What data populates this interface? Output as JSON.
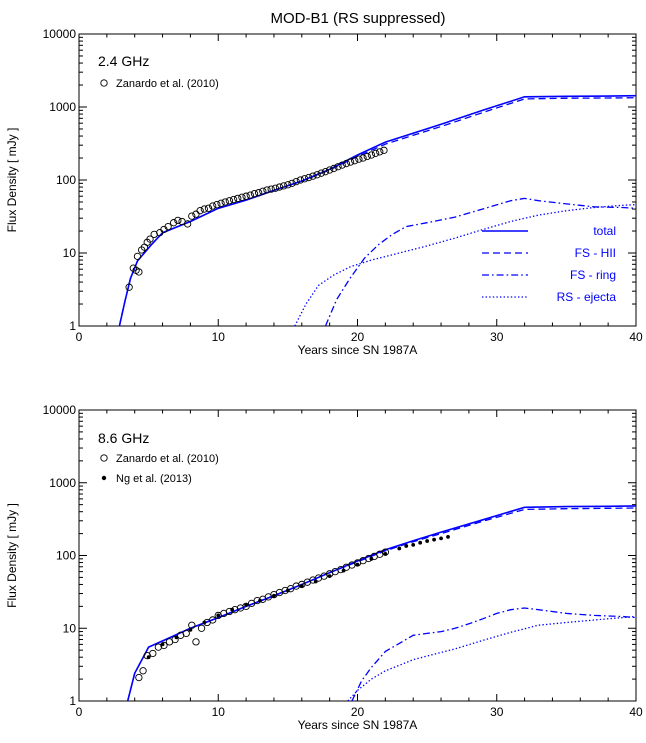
{
  "figure": {
    "title": "MOD-B1 (RS suppressed)",
    "colors": {
      "model": "#0000ff",
      "data": "#000000",
      "axes": "#000000"
    }
  },
  "chart_data": [
    {
      "type": "line",
      "panel_label": "2.4 GHz",
      "xlabel": "Years since SN 1987A",
      "ylabel": "Flux Density [ mJy ]",
      "xlim": [
        0,
        40
      ],
      "ylim": [
        1,
        10000
      ],
      "yscale": "log",
      "xticks": [
        0,
        10,
        20,
        30,
        40
      ],
      "yticks": [
        1,
        10,
        100,
        1000,
        10000
      ],
      "ytick_labels": [
        "1",
        "10",
        "100",
        "1000",
        "10000"
      ],
      "grid": false,
      "legend": {
        "placement": "center-right",
        "entries": [
          "total",
          "FS - HII",
          "FS - ring",
          "RS - ejecta"
        ]
      },
      "series": [
        {
          "name": "total",
          "style": "solid",
          "x": [
            2.9,
            3.3,
            3.7,
            4.2,
            5.2,
            6.0,
            8.0,
            10.0,
            12.0,
            14.0,
            16.0,
            18.0,
            20.0,
            22.0,
            26.0,
            29.0,
            32.0,
            35.0,
            38.0,
            40.0
          ],
          "y": [
            1.0,
            2.2,
            4.5,
            7.8,
            13.0,
            19.0,
            27.0,
            41.0,
            53.0,
            72.0,
            97.0,
            140.0,
            220.0,
            330.0,
            580.0,
            900.0,
            1380.0,
            1400.0,
            1410.0,
            1430.0
          ]
        },
        {
          "name": "FS - HII",
          "style": "dashed",
          "x": [
            2.9,
            3.3,
            3.7,
            4.2,
            5.2,
            6.0,
            8.0,
            10.0,
            12.0,
            14.0,
            16.0,
            18.0,
            20.0,
            22.0,
            26.0,
            29.0,
            32.0,
            35.0,
            38.0,
            40.0
          ],
          "y": [
            1.0,
            2.2,
            4.5,
            7.8,
            13.0,
            19.0,
            27.0,
            41.0,
            53.0,
            72.0,
            96.0,
            137.0,
            210.0,
            310.0,
            540.0,
            840.0,
            1290.0,
            1320.0,
            1330.0,
            1340.0
          ]
        },
        {
          "name": "FS - ring",
          "style": "dashdot",
          "x": [
            17.7,
            18.5,
            19.5,
            20.5,
            21.5,
            22.5,
            23.5,
            25.0,
            27.0,
            29.0,
            31.0,
            32.0,
            33.0,
            35.0,
            37.0,
            39.0,
            40.0
          ],
          "y": [
            1.0,
            2.3,
            4.6,
            8.5,
            13.0,
            18.0,
            23.0,
            26.0,
            31.0,
            40.0,
            52.0,
            56.0,
            52.0,
            47.0,
            43.0,
            42.0,
            41.0
          ]
        },
        {
          "name": "RS - ejecta",
          "style": "dotted",
          "x": [
            15.5,
            16.3,
            17.2,
            18.3,
            19.5,
            21.0,
            23.0,
            25.0,
            27.0,
            29.0,
            31.0,
            33.0,
            35.0,
            37.0,
            39.0,
            40.0
          ],
          "y": [
            1.0,
            2.0,
            3.6,
            5.0,
            6.5,
            8.0,
            10.0,
            12.5,
            16.0,
            21.0,
            27.0,
            33.0,
            38.0,
            42.0,
            45.0,
            46.0
          ]
        },
        {
          "name": "Zanardo et al. (2010)",
          "style": "open-circle",
          "x": [
            3.6,
            3.9,
            4.1,
            4.2,
            4.3,
            4.5,
            4.7,
            4.9,
            5.1,
            5.4,
            5.8,
            6.1,
            6.4,
            6.8,
            7.1,
            7.4,
            7.8,
            8.1,
            8.4,
            8.7,
            9.0,
            9.3,
            9.6,
            9.9,
            10.2,
            10.5,
            10.8,
            11.1,
            11.4,
            11.7,
            12.0,
            12.3,
            12.6,
            12.9,
            13.2,
            13.5,
            13.8,
            14.1,
            14.4,
            14.7,
            15.0,
            15.3,
            15.6,
            15.9,
            16.2,
            16.5,
            16.8,
            17.1,
            17.4,
            17.7,
            18.0,
            18.3,
            18.6,
            18.9,
            19.2,
            19.5,
            19.8,
            20.1,
            20.4,
            20.7,
            21.0,
            21.3,
            21.6,
            21.9
          ],
          "y": [
            3.4,
            6.2,
            5.8,
            9.0,
            5.5,
            11.0,
            12.0,
            14.0,
            15.5,
            18.0,
            19.0,
            21.0,
            23.0,
            26.0,
            28.0,
            27.0,
            25.0,
            32.0,
            34.0,
            38.0,
            40.0,
            41.0,
            44.0,
            46.0,
            48.0,
            50.0,
            52.0,
            54.0,
            56.0,
            58.0,
            60.0,
            62.0,
            65.0,
            67.0,
            70.0,
            73.0,
            75.0,
            77.0,
            80.0,
            83.0,
            86.0,
            90.0,
            95.0,
            100.0,
            104.0,
            108.0,
            113.0,
            118.0,
            124.0,
            130.0,
            137.0,
            144.0,
            152.0,
            160.0,
            168.0,
            176.0,
            184.0,
            193.0,
            200.0,
            210.0,
            220.0,
            232.0,
            243.0,
            255.0
          ]
        }
      ]
    },
    {
      "type": "line",
      "panel_label": "8.6 GHz",
      "xlabel": "Years since SN 1987A",
      "ylabel": "Flux Density [ mJy ]",
      "xlim": [
        0,
        40
      ],
      "ylim": [
        1,
        10000
      ],
      "yscale": "log",
      "xticks": [
        0,
        10,
        20,
        30,
        40
      ],
      "yticks": [
        1,
        10,
        100,
        1000,
        10000
      ],
      "ytick_labels": [
        "1",
        "10",
        "100",
        "1000",
        "10000"
      ],
      "grid": false,
      "series": [
        {
          "name": "total",
          "style": "solid",
          "x": [
            3.5,
            4.0,
            5.0,
            6.0,
            8.0,
            10.0,
            12.0,
            14.0,
            16.0,
            18.0,
            20.0,
            22.0,
            24.0,
            26.0,
            29.0,
            32.0,
            35.0,
            38.0,
            40.0
          ],
          "y": [
            1.0,
            2.4,
            5.5,
            6.7,
            10.0,
            14.0,
            20.0,
            28.0,
            40.0,
            58.0,
            84.0,
            120.0,
            160.0,
            210.0,
            310.0,
            460.0,
            470.0,
            475.0,
            480.0
          ]
        },
        {
          "name": "FS - HII",
          "style": "dashed",
          "x": [
            3.5,
            4.0,
            5.0,
            6.0,
            8.0,
            10.0,
            12.0,
            14.0,
            16.0,
            18.0,
            20.0,
            22.0,
            24.0,
            26.0,
            29.0,
            32.0,
            35.0,
            38.0,
            40.0
          ],
          "y": [
            1.0,
            2.4,
            5.5,
            6.7,
            10.0,
            14.0,
            20.0,
            28.0,
            40.0,
            58.0,
            82.0,
            116.0,
            155.0,
            200.0,
            295.0,
            430.0,
            440.0,
            445.0,
            450.0
          ]
        },
        {
          "name": "FS - ring",
          "style": "dashdot",
          "x": [
            19.6,
            20.3,
            21.0,
            22.0,
            23.0,
            24.0,
            25.0,
            26.0,
            27.0,
            28.0,
            29.0,
            30.0,
            31.0,
            32.0,
            33.0,
            35.0,
            37.0,
            39.0,
            40.0
          ],
          "y": [
            1.0,
            1.9,
            2.9,
            4.8,
            6.2,
            8.0,
            8.5,
            9.0,
            10.0,
            11.5,
            13.5,
            16.0,
            18.0,
            19.0,
            18.0,
            16.0,
            15.0,
            14.5,
            14.0
          ]
        },
        {
          "name": "RS - ejecta",
          "style": "dotted",
          "x": [
            19.3,
            20.0,
            21.0,
            22.0,
            23.0,
            24.0,
            25.5,
            27.0,
            29.0,
            31.0,
            33.0,
            35.0,
            37.0,
            39.0,
            40.0
          ],
          "y": [
            1.0,
            1.4,
            2.0,
            2.6,
            3.1,
            3.7,
            4.4,
            5.2,
            6.8,
            8.8,
            11.0,
            12.0,
            13.0,
            14.0,
            14.5
          ]
        },
        {
          "name": "Zanardo et al. (2010)",
          "style": "open-circle",
          "x": [
            4.3,
            4.6,
            4.9,
            5.3,
            5.7,
            6.1,
            6.5,
            6.9,
            7.3,
            7.7,
            8.1,
            8.4,
            8.8,
            9.2,
            9.6,
            10.0,
            10.4,
            10.8,
            11.2,
            11.6,
            12.0,
            12.4,
            12.8,
            13.2,
            13.6,
            14.0,
            14.4,
            14.8,
            15.2,
            15.6,
            16.0,
            16.4,
            16.8,
            17.2,
            17.6,
            18.0,
            18.4,
            18.8,
            19.2,
            19.6,
            20.0,
            20.4,
            20.8,
            21.2,
            21.6,
            22.0
          ],
          "y": [
            2.1,
            2.6,
            4.2,
            4.5,
            5.5,
            5.8,
            6.5,
            7.0,
            8.0,
            8.5,
            11.0,
            6.5,
            10.0,
            12.0,
            13.0,
            15.0,
            16.0,
            17.0,
            18.0,
            19.0,
            20.0,
            22.0,
            24.0,
            25.0,
            27.0,
            29.0,
            31.0,
            33.0,
            35.0,
            38.0,
            40.0,
            43.0,
            46.0,
            49.0,
            52.0,
            56.0,
            60.0,
            64.0,
            69.0,
            74.0,
            79.0,
            85.0,
            91.0,
            97.0,
            104.0,
            111.0
          ]
        },
        {
          "name": "Ng et al. (2013)",
          "style": "filled-dot",
          "x": [
            5.0,
            6.0,
            7.0,
            8.0,
            9.0,
            10.0,
            11.0,
            12.0,
            13.0,
            14.0,
            15.0,
            16.0,
            17.0,
            18.0,
            19.0,
            20.0,
            21.0,
            22.0,
            23.0,
            23.5,
            24.0,
            24.5,
            25.0,
            25.5,
            26.0,
            26.5
          ],
          "y": [
            4.0,
            6.0,
            7.5,
            9.5,
            12.0,
            15.0,
            18.0,
            21.0,
            24.0,
            28.0,
            33.0,
            38.0,
            44.0,
            52.0,
            62.0,
            75.0,
            90.0,
            105.0,
            125.0,
            135.0,
            140.0,
            150.0,
            158.0,
            165.0,
            172.0,
            180.0
          ]
        }
      ]
    }
  ]
}
